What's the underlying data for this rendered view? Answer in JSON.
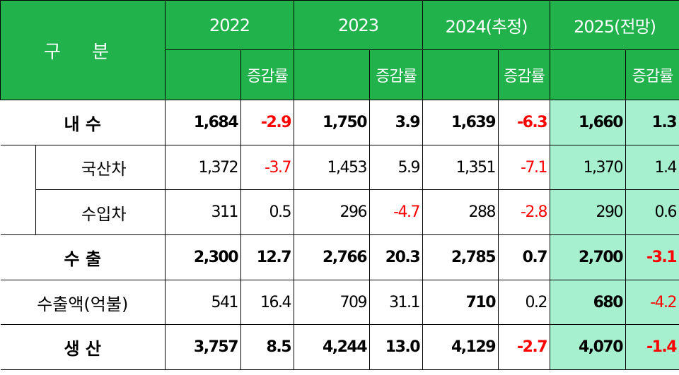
{
  "header": {
    "category": "구 분",
    "years": [
      "2022",
      "2023",
      "2024(추정)",
      "2025(전망)"
    ],
    "rate_label": "증감률"
  },
  "rows": [
    {
      "label": "내 수",
      "values": [
        "1,684",
        "-2.9",
        "1,750",
        "3.9",
        "1,639",
        "-6.3",
        "1,660",
        "1.3"
      ]
    },
    {
      "label": "국산차",
      "values": [
        "1,372",
        "-3.7",
        "1,453",
        "5.9",
        "1,351",
        "-7.1",
        "1,370",
        "1.4"
      ]
    },
    {
      "label": "수입차",
      "values": [
        "311",
        "0.5",
        "296",
        "-4.7",
        "288",
        "-2.8",
        "290",
        "0.6"
      ]
    },
    {
      "label": "수 출",
      "values": [
        "2,300",
        "12.7",
        "2,766",
        "20.3",
        "2,785",
        "0.7",
        "2,700",
        "-3.1"
      ]
    },
    {
      "label": "수출액(억불)",
      "values": [
        "541",
        "16.4",
        "709",
        "31.1",
        "710",
        "0.2",
        "680",
        "-4.2"
      ]
    },
    {
      "label": "생 산",
      "values": [
        "3,757",
        "8.5",
        "4,244",
        "13.0",
        "4,129",
        "-2.7",
        "4,070",
        "-1.4"
      ]
    }
  ],
  "colors": {
    "header_bg": "#22b24c",
    "highlight_bg": "#a6f0cf",
    "negative_text": "#ff0000"
  }
}
